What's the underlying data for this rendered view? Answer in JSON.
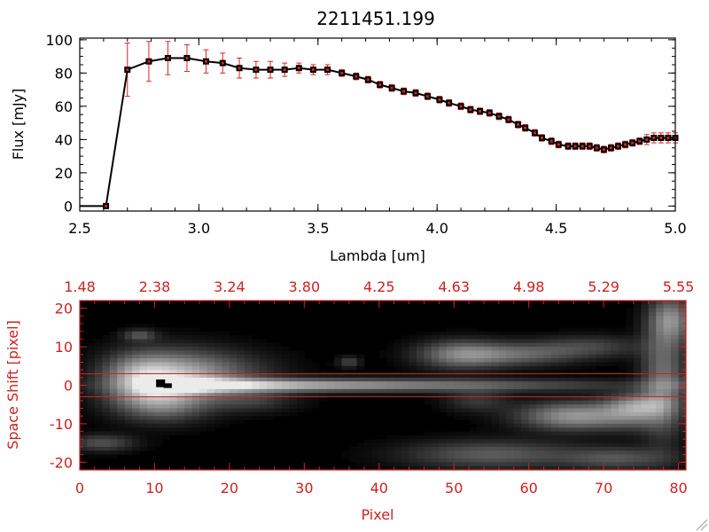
{
  "chart_data": [
    {
      "type": "line",
      "title": "2211451.199",
      "xlabel": "Lambda [um]",
      "ylabel": "Flux [mJy]",
      "xlim": [
        2.5,
        5.0
      ],
      "ylim": [
        -3,
        101
      ],
      "x_ticks": [
        "2.5",
        "3.0",
        "3.5",
        "4.0",
        "4.5",
        "5.0"
      ],
      "y_ticks": [
        "0",
        "20",
        "40",
        "60",
        "80",
        "100"
      ],
      "grid": false,
      "colors": {
        "line": "#000000",
        "marker": "#000000",
        "marker_inner": "#cc2222",
        "error_bar": "#dd2222"
      },
      "series": [
        {
          "x": [
            2.5,
            2.61,
            2.7,
            2.79,
            2.87,
            2.95,
            3.03,
            3.1,
            3.17,
            3.24,
            3.3,
            3.36,
            3.42,
            3.48,
            3.54,
            3.6,
            3.66,
            3.71,
            3.76,
            3.81,
            3.86,
            3.91,
            3.96,
            4.01,
            4.05,
            4.1,
            4.14,
            4.18,
            4.22,
            4.26,
            4.3,
            4.34,
            4.37,
            4.41,
            4.44,
            4.48,
            4.51,
            4.55,
            4.58,
            4.61,
            4.64,
            4.67,
            4.7,
            4.73,
            4.76,
            4.79,
            4.82,
            4.85,
            4.88,
            4.91,
            4.94,
            4.97,
            5.0
          ],
          "y": [
            0,
            0,
            82,
            87,
            89,
            89,
            87,
            86,
            83,
            82,
            82,
            82,
            83,
            82,
            82,
            80,
            78,
            76,
            73,
            71,
            69,
            68,
            66,
            64,
            62,
            60,
            58,
            57,
            56,
            54,
            52,
            49,
            47,
            44,
            41,
            39,
            37,
            36,
            36,
            36,
            36,
            35,
            34,
            35,
            36,
            37,
            38,
            39,
            40,
            41,
            41,
            41,
            41
          ],
          "yerr": [
            0,
            0,
            16,
            12,
            10,
            8,
            7,
            6,
            6,
            5,
            5,
            4,
            3,
            3,
            3,
            2,
            2,
            2,
            2,
            2,
            2,
            2,
            2,
            2,
            2,
            2,
            2,
            2,
            2,
            2,
            2,
            2,
            2,
            2,
            2,
            2,
            2,
            2,
            2,
            2,
            2,
            2,
            2,
            2,
            2,
            2,
            2,
            2,
            3,
            3,
            3,
            3,
            3
          ]
        }
      ]
    },
    {
      "type": "heatmap",
      "xlabel": "Pixel",
      "ylabel": "Space Shift [pixel]",
      "xlim": [
        0,
        81
      ],
      "ylim": [
        -22,
        22
      ],
      "x_ticks": [
        "0",
        "10",
        "20",
        "30",
        "40",
        "50",
        "60",
        "70",
        "80"
      ],
      "y_ticks": [
        "-20",
        "-10",
        "0",
        "10",
        "20"
      ],
      "top_axis_ticks": [
        "1.48",
        "2.38",
        "3.24",
        "3.80",
        "4.25",
        "4.63",
        "4.98",
        "5.29",
        "5.55"
      ],
      "aperture_lines_y": [
        3,
        -3
      ],
      "colormap": "gray",
      "colors": {
        "axes": "#cc2222",
        "aperture": "#cc2222"
      },
      "trace": {
        "center_y": 0,
        "peak_x": 11,
        "peak_value": 1.0
      },
      "blobs": [
        {
          "x": 11,
          "y": 1,
          "sx": 5,
          "sy": 5,
          "amp": 0.6
        },
        {
          "x": 17,
          "y": 3,
          "sx": 6,
          "sy": 4,
          "amp": 0.35
        },
        {
          "x": 8,
          "y": 2,
          "sx": 3,
          "sy": 4,
          "amp": 0.35
        },
        {
          "x": 11,
          "y": -5,
          "sx": 4,
          "sy": 3,
          "amp": 0.3
        },
        {
          "x": 23,
          "y": -4,
          "sx": 4,
          "sy": 2,
          "amp": 0.2
        },
        {
          "x": 51,
          "y": 8,
          "sx": 4,
          "sy": 2.5,
          "amp": 0.5
        },
        {
          "x": 59,
          "y": 8,
          "sx": 5,
          "sy": 2,
          "amp": 0.35
        },
        {
          "x": 68,
          "y": 10,
          "sx": 5,
          "sy": 2,
          "amp": 0.25
        },
        {
          "x": 66,
          "y": -8,
          "sx": 5,
          "sy": 2.5,
          "amp": 0.6
        },
        {
          "x": 74,
          "y": -7,
          "sx": 3,
          "sy": 3,
          "amp": 0.35
        },
        {
          "x": 75,
          "y": -5,
          "sx": 3,
          "sy": 2,
          "amp": 0.3
        },
        {
          "x": 78,
          "y": 1,
          "sx": 2,
          "sy": 10,
          "amp": 0.45
        },
        {
          "x": 79,
          "y": 17,
          "sx": 2,
          "sy": 4,
          "amp": 0.5
        },
        {
          "x": 55,
          "y": -18,
          "sx": 8,
          "sy": 2.5,
          "amp": 0.35
        },
        {
          "x": 72,
          "y": -19,
          "sx": 5,
          "sy": 2,
          "amp": 0.3
        },
        {
          "x": 3,
          "y": -15,
          "sx": 3,
          "sy": 1.5,
          "amp": 0.3
        },
        {
          "x": 8,
          "y": 13,
          "sx": 1.5,
          "sy": 1,
          "amp": 0.3
        },
        {
          "x": 53,
          "y": -4,
          "sx": 3,
          "sy": 2,
          "amp": 0.2
        },
        {
          "x": 36,
          "y": 6,
          "sx": 1,
          "sy": 1,
          "amp": 0.25
        }
      ]
    }
  ]
}
